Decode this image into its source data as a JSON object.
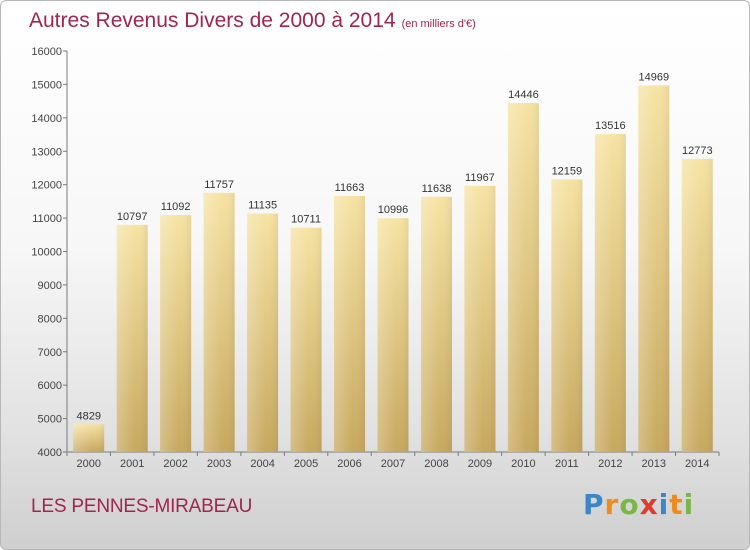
{
  "title": "Autres Revenus Divers de 2000 à 2014",
  "unit": "(en milliers d'€)",
  "city": "LES PENNES-MIRABEAU",
  "logo": {
    "letters": [
      "P",
      "r",
      "o",
      "x",
      "i",
      "t",
      "i"
    ],
    "colors": [
      "#3a86c8",
      "#f08a1c",
      "#7ab648",
      "#e03a2f",
      "#3a86c8",
      "#f08a1c",
      "#7ab648"
    ]
  },
  "colors": {
    "title": "#a0254f",
    "bar_top": "#f6e3a3",
    "bar_bottom": "#c7a85f"
  },
  "chart_data": {
    "type": "bar",
    "title": "Autres Revenus Divers de 2000 à 2014",
    "xlabel": "",
    "ylabel": "",
    "categories": [
      "2000",
      "2001",
      "2002",
      "2003",
      "2004",
      "2005",
      "2006",
      "2007",
      "2008",
      "2009",
      "2010",
      "2011",
      "2012",
      "2013",
      "2014"
    ],
    "values": [
      4829,
      10797,
      11092,
      11757,
      11135,
      10711,
      11663,
      10996,
      11638,
      11967,
      14446,
      12159,
      13516,
      14969,
      12773
    ],
    "ylim": [
      4000,
      16000
    ],
    "yticks": [
      4000,
      5000,
      6000,
      7000,
      8000,
      9000,
      10000,
      11000,
      12000,
      13000,
      14000,
      15000,
      16000
    ],
    "grid": false
  }
}
